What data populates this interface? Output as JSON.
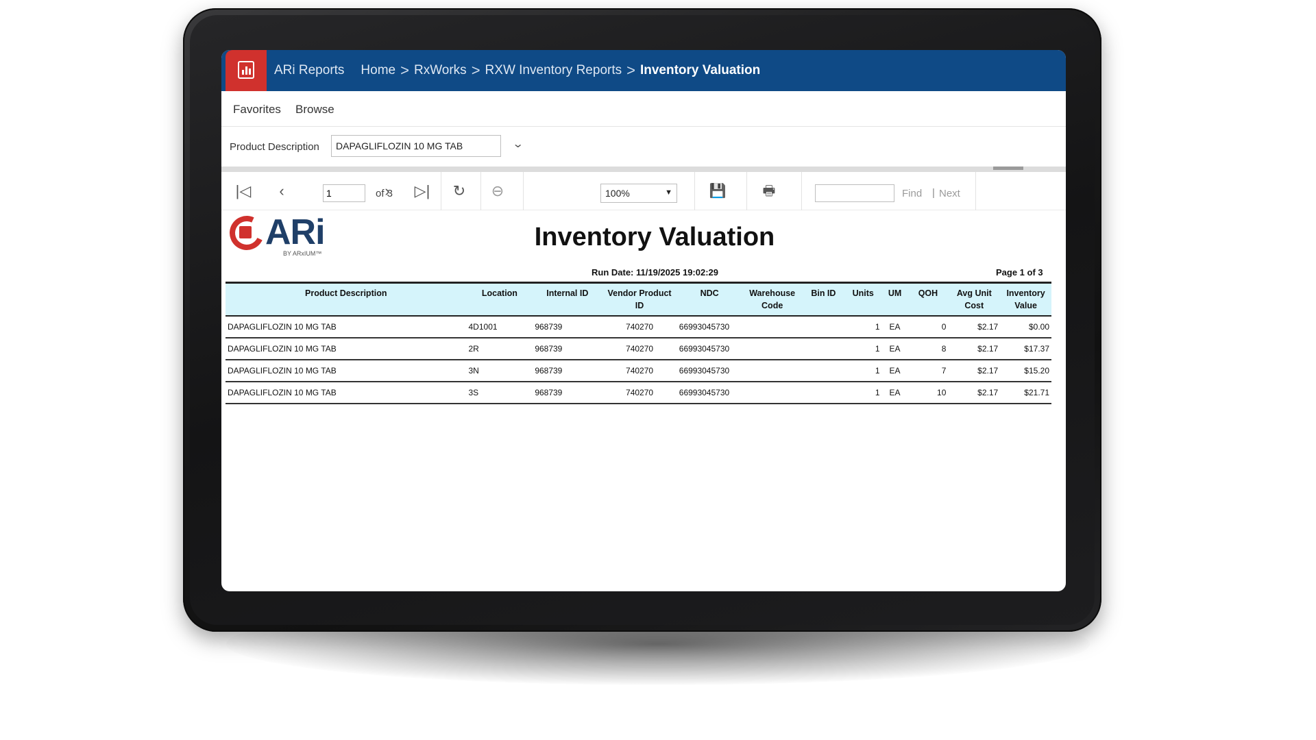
{
  "nav": {
    "app_name": "ARi Reports",
    "breadcrumbs": [
      "Home",
      "RxWorks",
      "RXW Inventory Reports"
    ],
    "current": "Inventory Valuation",
    "separator": ">"
  },
  "subnav": {
    "favorites": "Favorites",
    "browse": "Browse"
  },
  "parameters": {
    "product_label": "Product Description",
    "product_value": "DAPAGLIFLOZIN 10 MG TAB"
  },
  "toolbar": {
    "page_value": "1",
    "page_total": "of 3",
    "zoom": "100%",
    "find_label": "Find",
    "pipe": "|",
    "next_label": "Next"
  },
  "report": {
    "logo_text": "ARi",
    "logo_byline": "BY ARxIUM™",
    "title": "Inventory Valuation",
    "run_date": "Run Date: 11/19/2025  19:02:29",
    "page_of": "Page 1 of  3",
    "columns": [
      "Product Description",
      "Location",
      "Internal ID",
      "Vendor Product ID",
      "NDC",
      "Warehouse Code",
      "Bin ID",
      "Units",
      "UM",
      "QOH",
      "Avg Unit Cost",
      "Inventory Value"
    ],
    "rows": [
      [
        "DAPAGLIFLOZIN 10 MG TAB",
        "4D1001",
        "968739",
        "740270",
        "66993045730",
        "",
        "",
        "1",
        "EA",
        "0",
        "$2.17",
        "$0.00"
      ],
      [
        "DAPAGLIFLOZIN 10 MG TAB",
        "2R",
        "968739",
        "740270",
        "66993045730",
        "",
        "",
        "1",
        "EA",
        "8",
        "$2.17",
        "$17.37"
      ],
      [
        "DAPAGLIFLOZIN 10 MG TAB",
        "3N",
        "968739",
        "740270",
        "66993045730",
        "",
        "",
        "1",
        "EA",
        "7",
        "$2.17",
        "$15.20"
      ],
      [
        "DAPAGLIFLOZIN 10 MG TAB",
        "3S",
        "968739",
        "740270",
        "66993045730",
        "",
        "",
        "1",
        "EA",
        "10",
        "$2.17",
        "$21.71"
      ]
    ]
  },
  "colors": {
    "nav_bg": "#0f4a86",
    "brand_red": "#d0312d",
    "header_fill": "#d5f4fb",
    "logo_navy": "#1f3f68"
  }
}
